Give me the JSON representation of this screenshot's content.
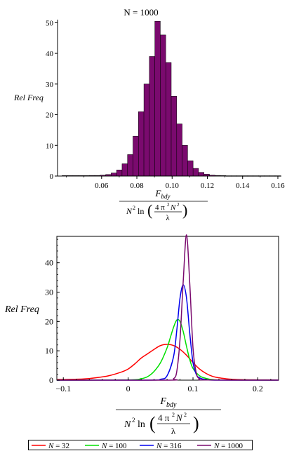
{
  "chart_data": [
    {
      "type": "bar",
      "title": "N = 1000",
      "ylabel": "Rel Freq",
      "xlabel": {
        "numerator": "F",
        "numerator_sub": "bdy",
        "denominator": "N² ln( 4 π² N² / λ )"
      },
      "xlim": [
        0.035,
        0.162
      ],
      "ylim": [
        0,
        51
      ],
      "xticks": [
        "0.06",
        "0.08",
        "0.10",
        "0.12",
        "0.14",
        "0.16"
      ],
      "xtick_values": [
        0.06,
        0.08,
        0.1,
        0.12,
        0.14,
        0.16
      ],
      "yticks": [
        "0",
        "10",
        "20",
        "30",
        "40",
        "50"
      ],
      "ytick_values": [
        0,
        10,
        20,
        30,
        40,
        50
      ],
      "bar_width": 0.0031,
      "bars": [
        {
          "x": 0.0375,
          "y": 0.15
        },
        {
          "x": 0.0406,
          "y": 0.15
        },
        {
          "x": 0.0437,
          "y": 0.15
        },
        {
          "x": 0.0468,
          "y": 0.15
        },
        {
          "x": 0.0499,
          "y": 0.15
        },
        {
          "x": 0.053,
          "y": 0.2
        },
        {
          "x": 0.0561,
          "y": 0.2
        },
        {
          "x": 0.0592,
          "y": 0.3
        },
        {
          "x": 0.0623,
          "y": 0.5
        },
        {
          "x": 0.0654,
          "y": 1.0
        },
        {
          "x": 0.0685,
          "y": 2.0
        },
        {
          "x": 0.0716,
          "y": 4.0
        },
        {
          "x": 0.0747,
          "y": 7.0
        },
        {
          "x": 0.0778,
          "y": 13.0
        },
        {
          "x": 0.0809,
          "y": 21.0
        },
        {
          "x": 0.084,
          "y": 30.0
        },
        {
          "x": 0.0871,
          "y": 39.0
        },
        {
          "x": 0.0902,
          "y": 50.5
        },
        {
          "x": 0.0933,
          "y": 46.0
        },
        {
          "x": 0.0964,
          "y": 37.0
        },
        {
          "x": 0.0995,
          "y": 26.0
        },
        {
          "x": 0.1026,
          "y": 17.0
        },
        {
          "x": 0.1057,
          "y": 10.0
        },
        {
          "x": 0.1088,
          "y": 5.0
        },
        {
          "x": 0.1119,
          "y": 2.5
        },
        {
          "x": 0.115,
          "y": 1.2
        },
        {
          "x": 0.1181,
          "y": 0.6
        },
        {
          "x": 0.1212,
          "y": 0.3
        },
        {
          "x": 0.1243,
          "y": 0.2
        },
        {
          "x": 0.1274,
          "y": 0.15
        },
        {
          "x": 0.1305,
          "y": 0.1
        },
        {
          "x": 0.1336,
          "y": 0.1
        },
        {
          "x": 0.1367,
          "y": 0.1
        },
        {
          "x": 0.1398,
          "y": 0.1
        },
        {
          "x": 0.1429,
          "y": 0.1
        },
        {
          "x": 0.146,
          "y": 0.1
        },
        {
          "x": 0.1491,
          "y": 0.1
        },
        {
          "x": 0.1522,
          "y": 0.1
        },
        {
          "x": 0.1553,
          "y": 0.1
        },
        {
          "x": 0.1584,
          "y": 0.1
        }
      ],
      "color": "#7a0a6e"
    },
    {
      "type": "line",
      "ylabel": "Rel Freq",
      "xlabel": {
        "numerator": "F",
        "numerator_sub": "bdy",
        "denominator": "N² ln( 4 π² N² / λ )"
      },
      "xlim": [
        -0.11,
        0.232
      ],
      "ylim": [
        0,
        49
      ],
      "xticks": [
        "−0.1",
        "0",
        "0.1",
        "0.2"
      ],
      "xtick_values": [
        -0.1,
        0,
        0.1,
        0.2
      ],
      "yticks": [
        "0",
        "10",
        "20",
        "30",
        "40"
      ],
      "ytick_values": [
        0,
        10,
        20,
        30,
        40
      ],
      "series": [
        {
          "name": "N = 32",
          "color": "#ff0000",
          "x": [
            -0.11,
            -0.07,
            -0.05,
            -0.03,
            -0.01,
            0.0,
            0.01,
            0.02,
            0.03,
            0.04,
            0.05,
            0.06,
            0.07,
            0.08,
            0.09,
            0.1,
            0.11,
            0.12,
            0.13,
            0.14,
            0.15,
            0.16,
            0.18,
            0.2,
            0.232
          ],
          "y": [
            0.2,
            0.4,
            0.8,
            1.5,
            2.8,
            3.8,
            5.5,
            7.5,
            9.0,
            10.5,
            11.8,
            12.2,
            11.8,
            10.5,
            8.5,
            6.0,
            3.8,
            2.3,
            1.3,
            0.8,
            0.5,
            0.3,
            0.15,
            0.1,
            0.05
          ]
        },
        {
          "name": "N = 100",
          "color": "#00e000",
          "x": [
            -0.11,
            0.0,
            0.02,
            0.03,
            0.04,
            0.05,
            0.06,
            0.065,
            0.07,
            0.075,
            0.08,
            0.085,
            0.09,
            0.095,
            0.1,
            0.11,
            0.12,
            0.13,
            0.15,
            0.232
          ],
          "y": [
            0,
            0.1,
            0.5,
            1.2,
            3.0,
            6.0,
            11.0,
            14.5,
            18.0,
            20.5,
            20.0,
            16.5,
            11.5,
            7.0,
            4.0,
            1.5,
            0.6,
            0.2,
            0.05,
            0
          ]
        },
        {
          "name": "N = 316",
          "color": "#0000ee",
          "x": [
            -0.11,
            0.03,
            0.05,
            0.06,
            0.07,
            0.075,
            0.08,
            0.085,
            0.09,
            0.095,
            0.1,
            0.105,
            0.11,
            0.12,
            0.14,
            0.232
          ],
          "y": [
            0,
            0,
            0.3,
            1.5,
            8.0,
            17.0,
            28.0,
            32.5,
            28.0,
            16.0,
            6.0,
            2.0,
            0.8,
            0.2,
            0,
            0
          ]
        },
        {
          "name": "N = 1000",
          "color": "#7a0a6e",
          "x": [
            -0.11,
            0.06,
            0.07,
            0.075,
            0.08,
            0.085,
            0.09,
            0.095,
            0.1,
            0.105,
            0.11,
            0.12,
            0.232
          ],
          "y": [
            0,
            0,
            0.5,
            3.0,
            14.0,
            34.0,
            49.5,
            33.0,
            11.0,
            2.5,
            0.5,
            0.05,
            0
          ]
        }
      ]
    }
  ],
  "legend": {
    "entries": [
      "N = 32",
      "N = 100",
      "N = 316",
      "N = 1000"
    ]
  }
}
